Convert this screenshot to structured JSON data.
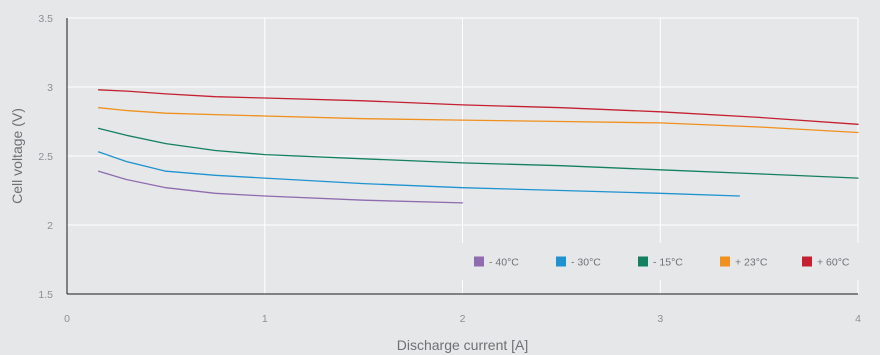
{
  "chart_data": {
    "type": "line",
    "xlabel": "Discharge current [A]",
    "ylabel": "Cell voltage (V)",
    "xlim": [
      0,
      4
    ],
    "ylim": [
      1.5,
      3.5
    ],
    "xticks": [
      0,
      1,
      2,
      3,
      4
    ],
    "yticks": [
      1.5,
      2,
      2.5,
      3,
      3.5
    ],
    "grid": true,
    "legend_position": "bottom-right",
    "series": [
      {
        "name": "- 40°C",
        "color": "#8f6bb0",
        "x": [
          0.16,
          0.3,
          0.5,
          0.75,
          1.0,
          1.5,
          2.0
        ],
        "y": [
          2.39,
          2.33,
          2.27,
          2.23,
          2.21,
          2.18,
          2.16
        ]
      },
      {
        "name": "- 30°C",
        "color": "#1f93d0",
        "x": [
          0.16,
          0.3,
          0.5,
          0.75,
          1.0,
          1.5,
          2.0,
          2.5,
          3.0,
          3.4
        ],
        "y": [
          2.53,
          2.46,
          2.39,
          2.36,
          2.34,
          2.3,
          2.27,
          2.25,
          2.23,
          2.21
        ]
      },
      {
        "name": "- 15°C",
        "color": "#138060",
        "x": [
          0.16,
          0.3,
          0.5,
          0.75,
          1.0,
          1.5,
          2.0,
          2.5,
          3.0,
          3.5,
          4.0
        ],
        "y": [
          2.7,
          2.65,
          2.59,
          2.54,
          2.51,
          2.48,
          2.45,
          2.43,
          2.4,
          2.37,
          2.34
        ]
      },
      {
        "name": "+ 23°C",
        "color": "#f0901e",
        "x": [
          0.16,
          0.3,
          0.5,
          0.75,
          1.0,
          1.5,
          2.0,
          2.5,
          3.0,
          3.5,
          4.0
        ],
        "y": [
          2.85,
          2.83,
          2.81,
          2.8,
          2.79,
          2.77,
          2.76,
          2.75,
          2.74,
          2.71,
          2.67
        ]
      },
      {
        "name": "+ 60°C",
        "color": "#c42031",
        "x": [
          0.16,
          0.3,
          0.5,
          0.75,
          1.0,
          1.5,
          2.0,
          2.5,
          3.0,
          3.5,
          4.0
        ],
        "y": [
          2.98,
          2.97,
          2.95,
          2.93,
          2.92,
          2.9,
          2.87,
          2.85,
          2.82,
          2.78,
          2.73
        ]
      }
    ]
  }
}
